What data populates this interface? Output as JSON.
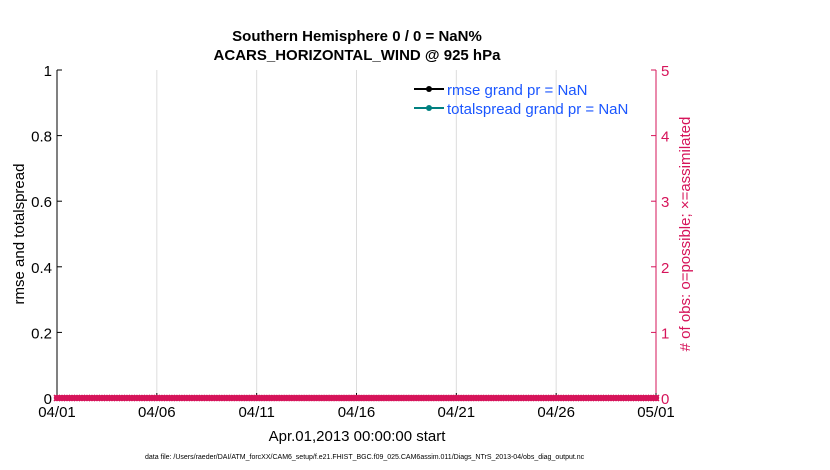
{
  "chart_data": {
    "type": "line",
    "title_line1": "Southern Hemisphere 0 / 0 = NaN%",
    "title_line2": "ACARS_HORIZONTAL_WIND @ 925 hPa",
    "xlabel": "Apr.01,2013 00:00:00 start",
    "ylabel_left": "rmse and totalspread",
    "ylabel_right": "# of obs: o=possible; ×=assimilated",
    "x_ticks": [
      "04/01",
      "04/06",
      "04/11",
      "04/16",
      "04/21",
      "04/26",
      "05/01"
    ],
    "xlim_days": [
      0,
      30
    ],
    "ylim_left": [
      0,
      1
    ],
    "y_ticks_left": [
      "0",
      "0.2",
      "0.4",
      "0.6",
      "0.8",
      "1"
    ],
    "ylim_right": [
      0,
      5
    ],
    "y_ticks_right": [
      "0",
      "1",
      "2",
      "3",
      "4",
      "5"
    ],
    "grid": "vertical",
    "legend_placement": "top-right",
    "series": [
      {
        "name": "rmse grand pr = NaN",
        "color": "#000000",
        "values": "NaN"
      },
      {
        "name": "totalspread grand pr = NaN",
        "color": "#008080",
        "values": "NaN"
      }
    ],
    "obs_counts": {
      "color": "#d6145a",
      "possible": 0,
      "assimilated": 0,
      "interval_hours": 6
    }
  },
  "footer": "data file: /Users/raeder/DAI/ATM_forcXX/CAM6_setup/f.e21.FHIST_BGC.f09_025.CAM6assim.011/Diags_NTrS_2013-04/obs_diag_output.nc",
  "colors": {
    "legend_text": "#1a56ff",
    "right_axis": "#d6145a"
  }
}
